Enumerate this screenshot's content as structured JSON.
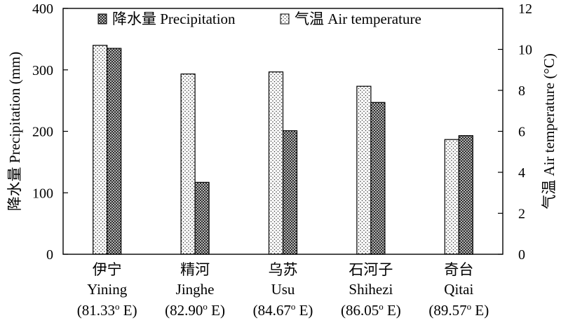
{
  "chart_data": {
    "type": "bar",
    "categories": [
      {
        "cn": "伊宁",
        "en": "Yining",
        "lon_value": "81.33",
        "lon_unit": "E"
      },
      {
        "cn": "精河",
        "en": "Jinghe",
        "lon_value": "82.90",
        "lon_unit": "E"
      },
      {
        "cn": "乌苏",
        "en": "Usu",
        "lon_value": "84.67",
        "lon_unit": "E"
      },
      {
        "cn": "石河子",
        "en": "Shihezi",
        "lon_value": "86.05",
        "lon_unit": "E"
      },
      {
        "cn": "奇台",
        "en": "Qitai",
        "lon_value": "89.57",
        "lon_unit": "E"
      }
    ],
    "degree_symbol": "o",
    "series": [
      {
        "name": "气温 Air temperature",
        "axis": "right",
        "pattern": "dots",
        "values": [
          10.2,
          8.8,
          8.9,
          8.2,
          5.6
        ]
      },
      {
        "name": "降水量 Precipitation",
        "axis": "left",
        "pattern": "crosshatch",
        "values": [
          335,
          117,
          201,
          247,
          193
        ]
      }
    ],
    "y_left": {
      "label": "降水量 Precipitation (mm)",
      "ylim": [
        0,
        400
      ],
      "ticks": [
        "0",
        "100",
        "200",
        "300",
        "400"
      ]
    },
    "y_right": {
      "label": "气温 Air temperature (°C)",
      "ylim": [
        0,
        12
      ],
      "ticks": [
        "0",
        "2",
        "4",
        "6",
        "8",
        "10",
        "12"
      ]
    },
    "legend": {
      "placement": "top",
      "order": [
        1,
        0
      ]
    },
    "grid": false
  }
}
